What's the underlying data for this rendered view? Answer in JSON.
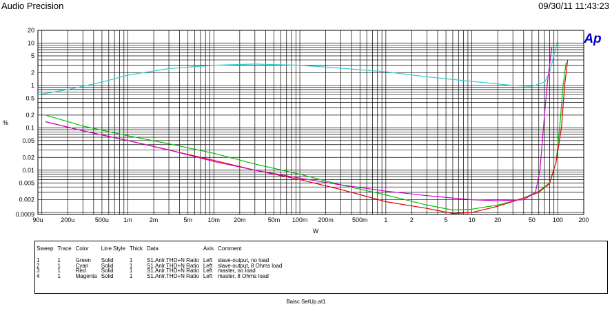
{
  "header": {
    "app_title": "Audio Precision",
    "timestamp": "09/30/11 11:43:23"
  },
  "logo_text": "Ap",
  "chart_data": {
    "type": "line",
    "xscale": "log",
    "yscale": "log",
    "xlim": [
      9e-05,
      200
    ],
    "ylim": [
      0.0009,
      20
    ],
    "xlabel": "W",
    "ylabel": "%",
    "grid": true,
    "x_ticks": [
      {
        "v": 9e-05,
        "label": "90u"
      },
      {
        "v": 0.0002,
        "label": "200u"
      },
      {
        "v": 0.0005,
        "label": "500u"
      },
      {
        "v": 0.001,
        "label": "1m"
      },
      {
        "v": 0.002,
        "label": "2m"
      },
      {
        "v": 0.005,
        "label": "5m"
      },
      {
        "v": 0.01,
        "label": "10m"
      },
      {
        "v": 0.02,
        "label": "20m"
      },
      {
        "v": 0.05,
        "label": "50m"
      },
      {
        "v": 0.1,
        "label": "100m"
      },
      {
        "v": 0.2,
        "label": "200m"
      },
      {
        "v": 0.5,
        "label": "500m"
      },
      {
        "v": 1,
        "label": "1"
      },
      {
        "v": 2,
        "label": "2"
      },
      {
        "v": 5,
        "label": "5"
      },
      {
        "v": 10,
        "label": "10"
      },
      {
        "v": 20,
        "label": "20"
      },
      {
        "v": 50,
        "label": "50"
      },
      {
        "v": 100,
        "label": "100"
      },
      {
        "v": 200,
        "label": "200"
      }
    ],
    "y_ticks": [
      {
        "v": 20,
        "label": "20"
      },
      {
        "v": 10,
        "label": "10"
      },
      {
        "v": 5,
        "label": "5"
      },
      {
        "v": 2,
        "label": "2"
      },
      {
        "v": 1,
        "label": "1"
      },
      {
        "v": 0.5,
        "label": "0.5"
      },
      {
        "v": 0.2,
        "label": "0.2"
      },
      {
        "v": 0.1,
        "label": "0.1"
      },
      {
        "v": 0.05,
        "label": "0.05"
      },
      {
        "v": 0.02,
        "label": "0.02"
      },
      {
        "v": 0.01,
        "label": "0.01"
      },
      {
        "v": 0.005,
        "label": "0.005"
      },
      {
        "v": 0.002,
        "label": "0.002"
      },
      {
        "v": 0.0009,
        "label": "0.0009"
      }
    ],
    "series": [
      {
        "name": "slave-output, no load",
        "color": "#00c000",
        "points": [
          [
            0.00011,
            0.2
          ],
          [
            0.0003,
            0.11
          ],
          [
            0.001,
            0.065
          ],
          [
            0.003,
            0.042
          ],
          [
            0.01,
            0.025
          ],
          [
            0.03,
            0.014
          ],
          [
            0.1,
            0.008
          ],
          [
            0.3,
            0.0045
          ],
          [
            1,
            0.0026
          ],
          [
            3,
            0.0015
          ],
          [
            6,
            0.00115
          ],
          [
            10,
            0.0012
          ],
          [
            20,
            0.0015
          ],
          [
            40,
            0.0022
          ],
          [
            60,
            0.0032
          ],
          [
            80,
            0.005
          ],
          [
            95,
            0.015
          ],
          [
            105,
            0.1
          ],
          [
            115,
            1
          ],
          [
            125,
            3.5
          ]
        ]
      },
      {
        "name": "slave-output, 8 Ohms load",
        "color": "#33cccc",
        "points": [
          [
            9e-05,
            0.6
          ],
          [
            0.0002,
            0.8
          ],
          [
            0.0005,
            1.2
          ],
          [
            0.001,
            1.75
          ],
          [
            0.003,
            2.5
          ],
          [
            0.01,
            3
          ],
          [
            0.03,
            3.2
          ],
          [
            0.1,
            3
          ],
          [
            0.3,
            2.55
          ],
          [
            1,
            2.1
          ],
          [
            3,
            1.6
          ],
          [
            10,
            1.25
          ],
          [
            30,
            1
          ],
          [
            50,
            0.95
          ],
          [
            70,
            1.2
          ],
          [
            80,
            2
          ],
          [
            90,
            5
          ],
          [
            100,
            12
          ]
        ]
      },
      {
        "name": "master, no load",
        "color": "#e00000",
        "points": [
          [
            0.00011,
            0.14
          ],
          [
            0.0003,
            0.085
          ],
          [
            0.001,
            0.05
          ],
          [
            0.003,
            0.03
          ],
          [
            0.01,
            0.017
          ],
          [
            0.03,
            0.01
          ],
          [
            0.1,
            0.006
          ],
          [
            0.3,
            0.0035
          ],
          [
            1,
            0.0018
          ],
          [
            3,
            0.00125
          ],
          [
            6,
            0.00095
          ],
          [
            10,
            0.001
          ],
          [
            20,
            0.0014
          ],
          [
            40,
            0.0022
          ],
          [
            60,
            0.003
          ],
          [
            80,
            0.0048
          ],
          [
            95,
            0.015
          ],
          [
            110,
            0.1
          ],
          [
            120,
            1
          ],
          [
            130,
            4
          ]
        ]
      },
      {
        "name": "master, 8 Ohms load",
        "color": "#cc00cc",
        "points": [
          [
            0.00011,
            0.14
          ],
          [
            0.0003,
            0.085
          ],
          [
            0.001,
            0.05
          ],
          [
            0.003,
            0.03
          ],
          [
            0.01,
            0.016
          ],
          [
            0.03,
            0.01
          ],
          [
            0.1,
            0.0065
          ],
          [
            0.3,
            0.0045
          ],
          [
            1,
            0.0032
          ],
          [
            3,
            0.0025
          ],
          [
            10,
            0.002
          ],
          [
            20,
            0.0019
          ],
          [
            40,
            0.002
          ],
          [
            55,
            0.003
          ],
          [
            62,
            0.01
          ],
          [
            68,
            0.1
          ],
          [
            75,
            1
          ],
          [
            85,
            8
          ]
        ]
      }
    ]
  },
  "legend": {
    "columns": [
      "Sweep",
      "Trace",
      "Color",
      "Line Style",
      "Thick",
      "Data",
      "Axis",
      "Comment"
    ],
    "rows": [
      [
        "1",
        "1",
        "Green",
        "Solid",
        "1",
        "S1.Anlr.THD+N Ratio",
        "Left",
        "slave-output, no load"
      ],
      [
        "2",
        "1",
        "Cyan",
        "Solid",
        "1",
        "S1.Anlr.THD+N Ratio",
        "Left",
        "slave-output, 8 Ohms load"
      ],
      [
        "3",
        "1",
        "Red",
        "Solid",
        "1",
        "S1.Anlr.THD+N Ratio",
        "Left",
        "master, no load"
      ],
      [
        "4",
        "1",
        "Magenta",
        "Solid",
        "1",
        "S1.Anlr.THD+N Ratio",
        "Left",
        "master, 8 Ohms load"
      ]
    ]
  },
  "file_name": "Baisc SetUp.at1"
}
